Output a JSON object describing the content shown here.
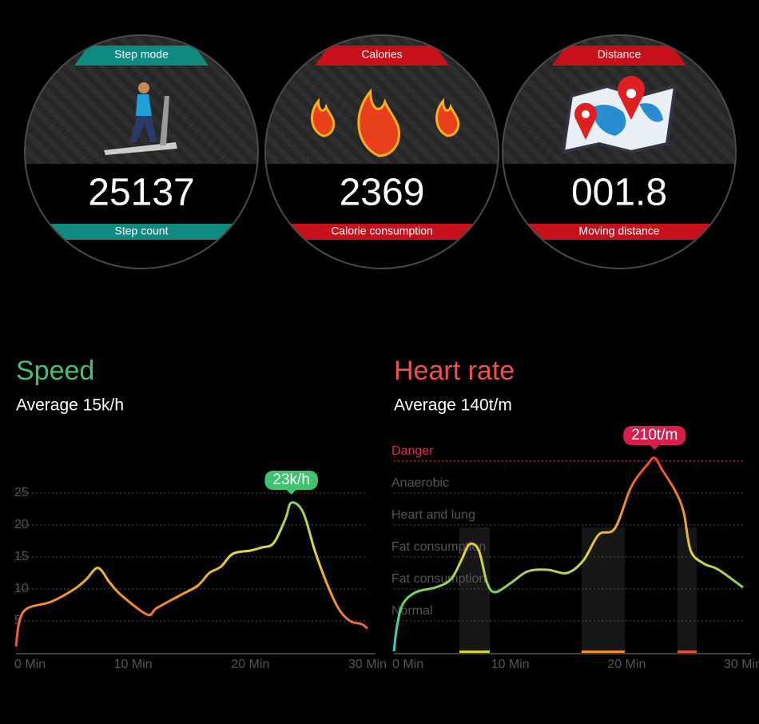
{
  "cards": [
    {
      "header": "Step mode",
      "value": "25137",
      "footer": "Step count"
    },
    {
      "header": "Calories",
      "value": "2369",
      "footer": "Calorie consumption"
    },
    {
      "header": "Distance",
      "value": "001.8",
      "footer": "Moving distance"
    }
  ],
  "chart_data": [
    {
      "type": "line",
      "title": "Speed",
      "subtitle": "Average  15k/h",
      "annotation": "23k/h",
      "x": [
        0,
        0.3,
        1,
        3,
        5,
        6,
        7,
        8,
        9,
        11.2,
        12,
        14,
        15.5,
        16.5,
        17.5,
        18.5,
        20,
        21,
        22,
        23,
        23.5,
        24.5,
        25.5,
        26.5,
        27.5,
        28.5,
        29.5,
        30
      ],
      "series": [
        {
          "name": "Speed",
          "values": [
            1,
            5,
            7,
            8,
            10,
            11.5,
            13.3,
            11,
            9,
            6,
            7,
            9,
            10.5,
            12.5,
            13.5,
            15.5,
            16,
            16.5,
            17.2,
            21,
            23.5,
            22,
            16,
            11,
            7,
            5,
            4.5,
            3.8
          ]
        }
      ],
      "xlim": [
        0,
        30
      ],
      "xticks": [
        {
          "value": 0,
          "label": "0 Min"
        },
        {
          "value": 10,
          "label": "10 Min"
        },
        {
          "value": 20,
          "label": "20 Min"
        },
        {
          "value": 30,
          "label": "30 Min"
        }
      ],
      "ylim": [
        0,
        30
      ],
      "yticks": [
        5,
        10,
        15,
        20,
        25
      ],
      "grid": true
    },
    {
      "type": "line",
      "title": "Heart rate",
      "subtitle": "Average  140t/m",
      "annotation": "210t/m",
      "x": [
        0,
        0.3,
        0.8,
        1.9,
        3.6,
        4.9,
        5.8,
        6.5,
        7.3,
        8,
        8.7,
        10.1,
        11.5,
        13.2,
        14.9,
        16.3,
        17.6,
        19,
        20.4,
        21.8,
        22.4,
        23.1,
        24.2,
        24.9,
        25.5,
        26.6,
        27.9,
        30
      ],
      "series": [
        {
          "name": "Heart rate",
          "values": [
            0.05,
            0.9,
            1.55,
            1.9,
            2.05,
            2.3,
            2.9,
            3.4,
            3.2,
            2.2,
            1.9,
            2.2,
            2.55,
            2.6,
            2.5,
            2.9,
            3.7,
            3.9,
            5.2,
            5.9,
            6.1,
            5.7,
            5.05,
            4.4,
            3.2,
            2.8,
            2.6,
            2.05
          ]
        }
      ],
      "xlim": [
        0,
        30
      ],
      "xticks": [
        {
          "value": 0,
          "label": "0 Min"
        },
        {
          "value": 10,
          "label": "10 Min"
        },
        {
          "value": 20,
          "label": "20 Min"
        },
        {
          "value": 30,
          "label": "30 Min"
        }
      ],
      "ylim": [
        0,
        6.5
      ],
      "yticks": [
        {
          "value": 1,
          "label": "Normal"
        },
        {
          "value": 2,
          "label": "Fat consumption"
        },
        {
          "value": 3,
          "label": "Fat consumption"
        },
        {
          "value": 4,
          "label": "Heart and lung"
        },
        {
          "value": 5,
          "label": "Anaerobic"
        },
        {
          "value": 6,
          "label": "Danger"
        }
      ],
      "grid": true,
      "threshold_color": "#e0284d"
    }
  ]
}
